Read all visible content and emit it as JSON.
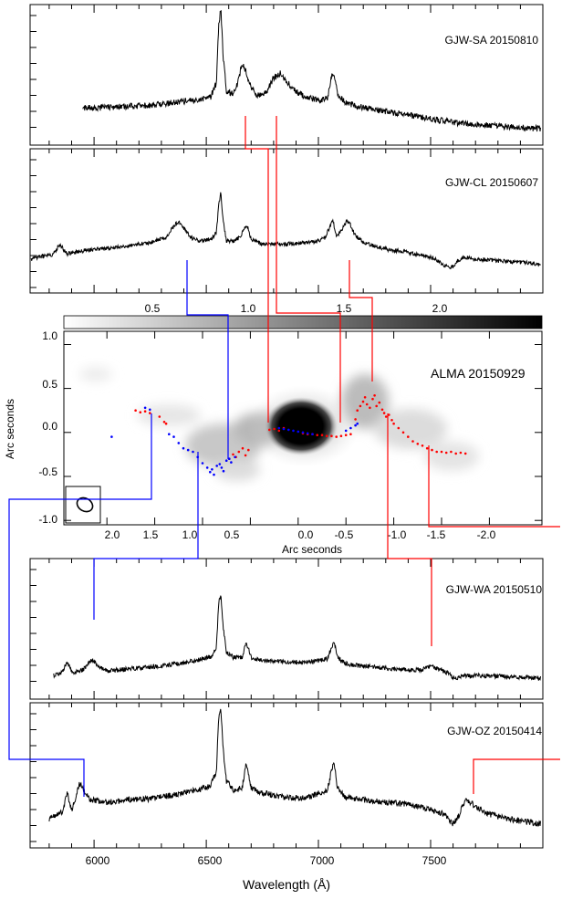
{
  "chart_data": [
    {
      "type": "line",
      "panel": "spectrum",
      "label": "GJW-SA 20150810",
      "x": [
        5950,
        6050,
        6150,
        6250,
        6350,
        6450,
        6520,
        6545,
        6555,
        6565,
        6575,
        6590,
        6620,
        6640,
        6660,
        6680,
        6700,
        6730,
        6770,
        6800,
        6830,
        6860,
        6900,
        6950,
        7000,
        7040,
        7060,
        7070,
        7085,
        7120,
        7200,
        7300,
        7400,
        7500,
        7600,
        7700,
        7800,
        7900,
        7990
      ],
      "y": [
        0.2,
        0.2,
        0.21,
        0.22,
        0.24,
        0.26,
        0.29,
        0.4,
        0.86,
        1.0,
        0.62,
        0.34,
        0.31,
        0.4,
        0.56,
        0.48,
        0.36,
        0.3,
        0.33,
        0.44,
        0.48,
        0.41,
        0.33,
        0.28,
        0.26,
        0.28,
        0.46,
        0.47,
        0.31,
        0.24,
        0.2,
        0.17,
        0.14,
        0.11,
        0.08,
        0.06,
        0.05,
        0.04,
        0.03
      ]
    },
    {
      "type": "line",
      "panel": "spectrum",
      "label": "GJW-CL 20150607",
      "x": [
        5720,
        5780,
        5820,
        5845,
        5880,
        5910,
        5950,
        6050,
        6150,
        6250,
        6320,
        6360,
        6380,
        6400,
        6430,
        6470,
        6520,
        6545,
        6555,
        6565,
        6575,
        6590,
        6620,
        6650,
        6675,
        6685,
        6700,
        6750,
        6850,
        6950,
        7000,
        7030,
        7055,
        7065,
        7080,
        7100,
        7125,
        7140,
        7160,
        7200,
        7300,
        7400,
        7480,
        7520,
        7560,
        7600,
        7620,
        7650,
        7700,
        7800,
        7900,
        7990
      ],
      "y": [
        0.18,
        0.22,
        0.24,
        0.36,
        0.24,
        0.26,
        0.28,
        0.31,
        0.34,
        0.38,
        0.44,
        0.6,
        0.63,
        0.56,
        0.44,
        0.4,
        0.42,
        0.5,
        0.82,
        1.0,
        0.64,
        0.4,
        0.4,
        0.44,
        0.58,
        0.56,
        0.42,
        0.36,
        0.36,
        0.38,
        0.4,
        0.44,
        0.6,
        0.64,
        0.46,
        0.52,
        0.64,
        0.62,
        0.48,
        0.38,
        0.3,
        0.26,
        0.22,
        0.18,
        0.1,
        0.08,
        0.16,
        0.2,
        0.18,
        0.16,
        0.14,
        0.12
      ]
    },
    {
      "type": "line",
      "panel": "spectrum",
      "label": "GJW-WA 20150510",
      "x": [
        5820,
        5860,
        5880,
        5900,
        5930,
        5960,
        5980,
        5995,
        6020,
        6060,
        6150,
        6250,
        6350,
        6450,
        6520,
        6545,
        6555,
        6565,
        6575,
        6590,
        6620,
        6660,
        6675,
        6685,
        6700,
        6750,
        6850,
        6950,
        7040,
        7060,
        7070,
        7085,
        7120,
        7200,
        7300,
        7400,
        7460,
        7500,
        7540,
        7580,
        7610,
        7640,
        7700,
        7800,
        7900,
        7990
      ],
      "y": [
        0.1,
        0.14,
        0.26,
        0.14,
        0.13,
        0.18,
        0.26,
        0.27,
        0.2,
        0.15,
        0.17,
        0.19,
        0.22,
        0.26,
        0.3,
        0.4,
        0.88,
        1.0,
        0.64,
        0.36,
        0.3,
        0.3,
        0.44,
        0.42,
        0.3,
        0.26,
        0.25,
        0.24,
        0.28,
        0.42,
        0.46,
        0.3,
        0.23,
        0.2,
        0.18,
        0.16,
        0.16,
        0.2,
        0.17,
        0.12,
        0.06,
        0.09,
        0.1,
        0.09,
        0.08,
        0.07
      ]
    },
    {
      "type": "line",
      "panel": "spectrum",
      "label": "GJW-OZ 20150414",
      "x": [
        5800,
        5840,
        5860,
        5880,
        5900,
        5920,
        5935,
        5950,
        5980,
        6050,
        6150,
        6250,
        6350,
        6450,
        6520,
        6545,
        6555,
        6565,
        6575,
        6590,
        6620,
        6660,
        6675,
        6685,
        6700,
        6750,
        6850,
        6950,
        7040,
        7060,
        7070,
        7085,
        7120,
        7200,
        7300,
        7400,
        7500,
        7560,
        7600,
        7620,
        7640,
        7660,
        7690,
        7720,
        7760,
        7800,
        7900,
        7990
      ],
      "y": [
        0.06,
        0.1,
        0.12,
        0.28,
        0.14,
        0.24,
        0.36,
        0.32,
        0.22,
        0.2,
        0.22,
        0.23,
        0.26,
        0.3,
        0.34,
        0.46,
        0.9,
        1.0,
        0.66,
        0.38,
        0.3,
        0.32,
        0.5,
        0.48,
        0.32,
        0.28,
        0.24,
        0.24,
        0.3,
        0.48,
        0.52,
        0.32,
        0.24,
        0.22,
        0.2,
        0.18,
        0.14,
        0.1,
        0.02,
        0.06,
        0.16,
        0.22,
        0.18,
        0.14,
        0.1,
        0.08,
        0.04,
        0.02
      ]
    },
    {
      "type": "scatter",
      "panel": "image",
      "label": "ALMA 20150929",
      "xlabel": "Arc seconds",
      "ylabel": "Arc seconds",
      "xlim": [
        2.45,
        -2.55
      ],
      "ylim": [
        -1.05,
        1.15
      ],
      "x_ticks": [
        2.0,
        1.5,
        1.0,
        0.5,
        0.0,
        -0.5,
        -1.0,
        -1.5,
        -2.0
      ],
      "x_tick_labels": [
        "2.0",
        "1.5",
        "1.0",
        "0.5",
        "0.0",
        "-0.5",
        "-1.0",
        "-1.5",
        "-2.0"
      ],
      "y_ticks": [
        1.0,
        0.5,
        0.0,
        -0.5,
        -1.0
      ],
      "y_tick_labels": [
        "1.0",
        "0.5",
        "0.0",
        "-0.5",
        "-1.0"
      ],
      "colorbar_ticks": [
        "0.5",
        "1.0",
        "1.5",
        "2.0"
      ],
      "series": [
        {
          "color": "#ff0000",
          "x": [
            1.7,
            1.65,
            1.6,
            1.55,
            1.45,
            1.4,
            1.38,
            0.72,
            0.68,
            0.65,
            0.62,
            0.58,
            0.55,
            0.52,
            0.3,
            0.25,
            0.2,
            0.15,
            -0.05,
            -0.1,
            -0.15,
            -0.2,
            -0.25,
            -0.3,
            -0.35,
            -0.4,
            -0.45,
            -0.5,
            -0.55,
            -0.6,
            -0.62,
            -0.65,
            -0.68,
            -0.7,
            -0.72,
            -0.75,
            -0.78,
            -0.8,
            -0.82,
            -0.85,
            -0.88,
            -0.9,
            -0.92,
            -0.95,
            -0.98,
            -1.0,
            -1.05,
            -1.1,
            -1.15,
            -1.2,
            -1.25,
            -1.3,
            -1.35,
            -1.4,
            -1.45,
            -1.5,
            -1.55,
            -1.6,
            -1.65,
            -1.7,
            -1.75
          ],
          "y": [
            0.25,
            0.23,
            0.24,
            0.22,
            0.18,
            0.12,
            0.1,
            -0.3,
            -0.25,
            -0.28,
            -0.22,
            -0.18,
            -0.26,
            -0.2,
            0.03,
            0.04,
            0.02,
            0.05,
            -0.01,
            -0.02,
            -0.02,
            -0.03,
            -0.03,
            -0.04,
            -0.04,
            -0.05,
            -0.04,
            -0.03,
            -0.02,
            0.15,
            0.25,
            0.3,
            0.35,
            0.4,
            0.32,
            0.28,
            0.38,
            0.42,
            0.3,
            0.34,
            0.26,
            0.22,
            0.18,
            0.2,
            0.14,
            0.1,
            0.05,
            0.0,
            -0.05,
            -0.1,
            -0.13,
            -0.15,
            -0.18,
            -0.2,
            -0.22,
            -0.22,
            -0.23,
            -0.22,
            -0.24,
            -0.23,
            -0.24
          ]
        },
        {
          "color": "#0000ff",
          "x": [
            1.95,
            1.6,
            1.55,
            1.35,
            1.3,
            1.25,
            1.2,
            1.15,
            1.1,
            1.05,
            1.0,
            0.95,
            0.92,
            0.9,
            0.88,
            0.85,
            0.82,
            0.8,
            0.78,
            0.75,
            0.72,
            0.7,
            0.66,
            0.2,
            0.15,
            0.1,
            0.05,
            0.0,
            -0.05,
            -0.1,
            -0.15,
            -0.5,
            -0.55,
            -0.6,
            -0.62
          ],
          "y": [
            -0.05,
            0.28,
            0.26,
            -0.02,
            -0.05,
            -0.12,
            -0.18,
            -0.2,
            -0.22,
            -0.28,
            -0.35,
            -0.4,
            -0.45,
            -0.42,
            -0.48,
            -0.38,
            -0.36,
            -0.4,
            -0.44,
            -0.32,
            -0.3,
            -0.34,
            -0.28,
            0.05,
            0.04,
            0.03,
            0.02,
            0.01,
            0.0,
            -0.01,
            -0.02,
            0.02,
            0.05,
            0.08,
            0.1
          ]
        }
      ]
    }
  ],
  "spectra_axis": {
    "xlabel": "Wavelength (Å)",
    "xlim": [
      5715,
      8000
    ],
    "x_ticks": [
      6000,
      6500,
      7000,
      7500
    ],
    "x_tick_labels": [
      "6000",
      "6500",
      "7000",
      "7500"
    ]
  }
}
